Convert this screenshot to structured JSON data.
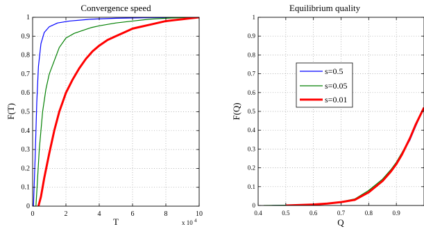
{
  "chart_data": [
    {
      "type": "line",
      "title": "Convergence speed",
      "xlabel": "T",
      "ylabel": "F(T)",
      "x_multiplier": "x 10",
      "x_multiplier_exp": "4",
      "xlim": [
        0,
        10
      ],
      "ylim": [
        0,
        1
      ],
      "xticks": [
        "0",
        "2",
        "4",
        "6",
        "8",
        "10"
      ],
      "yticks": [
        "0",
        "0.1",
        "0.2",
        "0.3",
        "0.4",
        "0.5",
        "0.6",
        "0.7",
        "0.8",
        "0.9",
        "1"
      ],
      "xtick_values": [
        0,
        2,
        4,
        6,
        8,
        10
      ],
      "ytick_values": [
        0,
        0.1,
        0.2,
        0.3,
        0.4,
        0.5,
        0.6,
        0.7,
        0.8,
        0.9,
        1
      ],
      "grid": true,
      "series": [
        {
          "color": "#0000ff",
          "width": 1.2,
          "points": [
            [
              0.05,
              0
            ],
            [
              0.15,
              0.25
            ],
            [
              0.25,
              0.55
            ],
            [
              0.35,
              0.74
            ],
            [
              0.5,
              0.86
            ],
            [
              0.7,
              0.92
            ],
            [
              1.0,
              0.95
            ],
            [
              1.5,
              0.97
            ],
            [
              2.2,
              0.98
            ],
            [
              3.5,
              0.99
            ],
            [
              5,
              0.995
            ],
            [
              7,
              0.998
            ],
            [
              10,
              1.0
            ]
          ]
        },
        {
          "color": "#007f00",
          "width": 1.2,
          "points": [
            [
              0.2,
              0
            ],
            [
              0.3,
              0.15
            ],
            [
              0.4,
              0.3
            ],
            [
              0.6,
              0.5
            ],
            [
              0.8,
              0.62
            ],
            [
              1.0,
              0.7
            ],
            [
              1.3,
              0.77
            ],
            [
              1.6,
              0.84
            ],
            [
              2.0,
              0.89
            ],
            [
              2.5,
              0.915
            ],
            [
              3.0,
              0.93
            ],
            [
              3.5,
              0.945
            ],
            [
              4.0,
              0.955
            ],
            [
              5.0,
              0.97
            ],
            [
              6.0,
              0.98
            ],
            [
              7.0,
              0.99
            ],
            [
              8.0,
              0.995
            ],
            [
              9.0,
              0.998
            ],
            [
              10,
              1.0
            ]
          ]
        },
        {
          "color": "#ff0000",
          "width": 3,
          "points": [
            [
              0.35,
              0
            ],
            [
              0.5,
              0.05
            ],
            [
              0.7,
              0.15
            ],
            [
              1.0,
              0.28
            ],
            [
              1.3,
              0.4
            ],
            [
              1.6,
              0.5
            ],
            [
              2.0,
              0.6
            ],
            [
              2.4,
              0.67
            ],
            [
              2.8,
              0.73
            ],
            [
              3.2,
              0.78
            ],
            [
              3.6,
              0.82
            ],
            [
              4.0,
              0.85
            ],
            [
              4.5,
              0.88
            ],
            [
              5.0,
              0.9
            ],
            [
              5.5,
              0.92
            ],
            [
              6.0,
              0.94
            ],
            [
              6.5,
              0.95
            ],
            [
              7.0,
              0.96
            ],
            [
              8.0,
              0.98
            ],
            [
              9.0,
              0.99
            ],
            [
              10,
              1.0
            ]
          ]
        }
      ]
    },
    {
      "type": "line",
      "title": "Equilibrium quality",
      "xlabel": "Q",
      "ylabel": "F(Q)",
      "xlim": [
        0.4,
        1.0
      ],
      "ylim": [
        0,
        1
      ],
      "xticks": [
        "0.4",
        "0.5",
        "0.6",
        "0.7",
        "0.8",
        "0.9"
      ],
      "yticks": [
        "0",
        "0.1",
        "0.2",
        "0.3",
        "0.4",
        "0.5",
        "0.6",
        "0.7",
        "0.8",
        "0.9",
        "1"
      ],
      "xtick_values": [
        0.4,
        0.5,
        0.6,
        0.7,
        0.8,
        0.9
      ],
      "ytick_values": [
        0,
        0.1,
        0.2,
        0.3,
        0.4,
        0.5,
        0.6,
        0.7,
        0.8,
        0.9,
        1
      ],
      "grid": true,
      "legend": [
        "s=0.5",
        "s=0.05",
        "s=0.01"
      ],
      "legend_position": "center-left",
      "series": [
        {
          "name": "s=0.5",
          "color": "#0000ff",
          "width": 1.2,
          "points": [
            [
              0.45,
              0
            ],
            [
              0.6,
              0.003
            ],
            [
              0.65,
              0.01
            ],
            [
              0.7,
              0.02
            ],
            [
              0.75,
              0.03
            ],
            [
              0.8,
              0.07
            ],
            [
              0.85,
              0.13
            ],
            [
              0.88,
              0.18
            ],
            [
              0.9,
              0.22
            ],
            [
              0.92,
              0.27
            ],
            [
              0.95,
              0.35
            ],
            [
              0.97,
              0.42
            ],
            [
              1.0,
              0.52
            ]
          ]
        },
        {
          "name": "s=0.05",
          "color": "#007f00",
          "width": 1.2,
          "points": [
            [
              0.42,
              0
            ],
            [
              0.6,
              0.003
            ],
            [
              0.65,
              0.01
            ],
            [
              0.7,
              0.02
            ],
            [
              0.75,
              0.035
            ],
            [
              0.8,
              0.08
            ],
            [
              0.85,
              0.14
            ],
            [
              0.88,
              0.19
            ],
            [
              0.9,
              0.23
            ],
            [
              0.92,
              0.28
            ],
            [
              0.95,
              0.36
            ],
            [
              0.97,
              0.43
            ],
            [
              1.0,
              0.52
            ]
          ]
        },
        {
          "name": "s=0.01",
          "color": "#ff0000",
          "width": 3,
          "points": [
            [
              0.5,
              0
            ],
            [
              0.6,
              0.005
            ],
            [
              0.65,
              0.01
            ],
            [
              0.7,
              0.018
            ],
            [
              0.75,
              0.03
            ],
            [
              0.8,
              0.07
            ],
            [
              0.85,
              0.13
            ],
            [
              0.88,
              0.18
            ],
            [
              0.9,
              0.22
            ],
            [
              0.92,
              0.27
            ],
            [
              0.95,
              0.36
            ],
            [
              0.97,
              0.43
            ],
            [
              1.0,
              0.52
            ]
          ]
        }
      ]
    }
  ]
}
